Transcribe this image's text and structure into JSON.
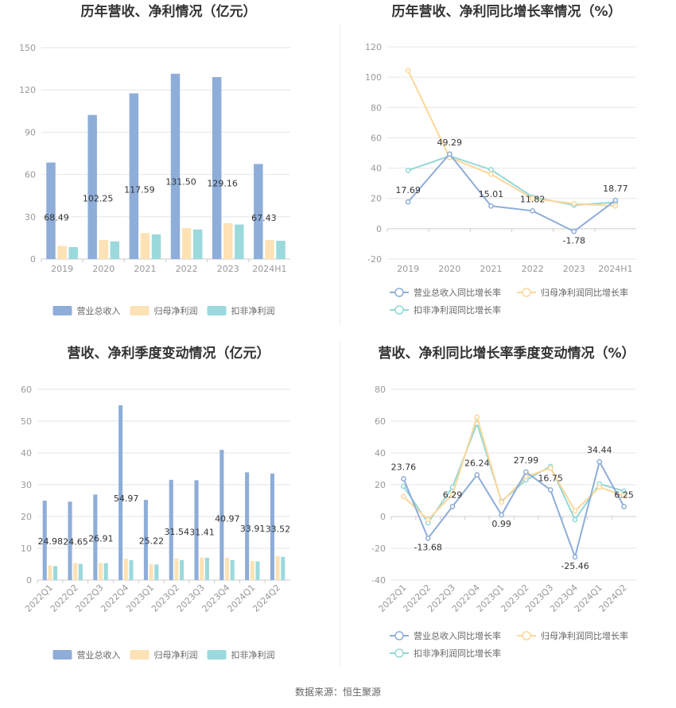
{
  "footer": {
    "source": "数据来源：恒生聚源"
  },
  "colors": {
    "blue": "#8eadd9",
    "yellow": "#fde2b5",
    "teal": "#9bd9dc",
    "line_yellow": "#fdd79a",
    "line_teal": "#93d8d6",
    "line_blue": "#8eadd9"
  },
  "chart_data": [
    {
      "id": "annual-bars",
      "type": "bar",
      "title": "历年营收、净利情况（亿元）",
      "categories": [
        "2019",
        "2020",
        "2021",
        "2022",
        "2023",
        "2024H1"
      ],
      "series": [
        {
          "name": "营业总收入",
          "values": [
            68.49,
            102.25,
            117.59,
            131.5,
            129.16,
            67.43
          ],
          "color": "#8eadd9",
          "labels": [
            "68.49",
            "102.25",
            "117.59",
            "131.50",
            "129.16",
            "67.43"
          ]
        },
        {
          "name": "归母净利润",
          "values": [
            9.3,
            13.5,
            18.5,
            22.0,
            25.5,
            13.5
          ],
          "color": "#fde2b5"
        },
        {
          "name": "扣非净利润",
          "values": [
            8.5,
            12.5,
            17.5,
            21.0,
            24.5,
            13.0
          ],
          "color": "#9bd9dc"
        }
      ],
      "yticks": [
        0,
        30,
        60,
        90,
        120,
        150
      ],
      "ylim": [
        0,
        150
      ]
    },
    {
      "id": "annual-growth",
      "type": "line",
      "title": "历年营收、净利同比增长率情况（%）",
      "categories": [
        "2019",
        "2020",
        "2021",
        "2022",
        "2023",
        "2024H1"
      ],
      "series": [
        {
          "name": "营业总收入同比增长率",
          "values": [
            17.69,
            49.29,
            15.01,
            11.82,
            -1.78,
            18.77
          ],
          "color": "#8eadd9",
          "labels": [
            "17.69",
            "49.29",
            "15.01",
            "11.82",
            "-1.78",
            "18.77"
          ]
        },
        {
          "name": "归母净利润同比增长率",
          "values": [
            104.5,
            47.0,
            36.0,
            20.0,
            16.5,
            15.0
          ],
          "color": "#fdd79a"
        },
        {
          "name": "扣非净利润同比增长率",
          "values": [
            38.5,
            48.0,
            39.0,
            21.0,
            15.5,
            17.5
          ],
          "color": "#93d8d6"
        }
      ],
      "yticks": [
        -20,
        0,
        20,
        40,
        60,
        80,
        100,
        120
      ],
      "ylim": [
        -20,
        120
      ]
    },
    {
      "id": "quarterly-bars",
      "type": "bar",
      "title": "营收、净利季度变动情况（亿元）",
      "categories": [
        "2022Q1",
        "2022Q2",
        "2022Q3",
        "2022Q4",
        "2023Q1",
        "2023Q2",
        "2023Q3",
        "2023Q4",
        "2024Q1",
        "2024Q2"
      ],
      "series": [
        {
          "name": "营业总收入",
          "values": [
            24.98,
            24.65,
            26.91,
            54.97,
            25.22,
            31.54,
            31.41,
            40.97,
            33.91,
            33.52
          ],
          "color": "#8eadd9",
          "labels": [
            "24.98",
            "24.65",
            "26.91",
            "54.97",
            "25.22",
            "31.54",
            "31.41",
            "40.97",
            "33.91",
            "33.52"
          ]
        },
        {
          "name": "归母净利润",
          "values": [
            4.6,
            5.4,
            5.4,
            6.7,
            5.0,
            6.8,
            7.1,
            7.0,
            6.0,
            7.5
          ],
          "color": "#fde2b5"
        },
        {
          "name": "扣非净利润",
          "values": [
            4.4,
            5.1,
            5.3,
            6.3,
            4.9,
            6.3,
            7.0,
            6.3,
            5.9,
            7.3
          ],
          "color": "#9bd9dc"
        }
      ],
      "yticks": [
        0,
        10,
        20,
        30,
        40,
        50,
        60
      ],
      "ylim": [
        0,
        60
      ]
    },
    {
      "id": "quarterly-growth",
      "type": "line",
      "title": "营收、净利同比增长率季度变动情况（%）",
      "categories": [
        "2022Q1",
        "2022Q2",
        "2022Q3",
        "2022Q4",
        "2023Q1",
        "2023Q2",
        "2023Q3",
        "2023Q4",
        "2024Q1",
        "2024Q2"
      ],
      "series": [
        {
          "name": "营业总收入同比增长率",
          "values": [
            23.76,
            -13.68,
            6.29,
            26.24,
            0.99,
            27.99,
            16.75,
            -25.46,
            34.44,
            6.25
          ],
          "color": "#8eadd9",
          "labels": [
            "23.76",
            "-13.68",
            "6.29",
            "26.24",
            "0.99",
            "27.99",
            "16.75",
            "-25.46",
            "34.44",
            "6.25"
          ]
        },
        {
          "name": "归母净利润同比增长率",
          "values": [
            12.5,
            -2.0,
            14.0,
            62.5,
            9.0,
            25.0,
            30.5,
            3.5,
            18.5,
            13.0
          ],
          "color": "#fdd79a"
        },
        {
          "name": "扣非净利润同比增长率",
          "values": [
            19.0,
            -4.0,
            18.5,
            58.5,
            9.5,
            23.0,
            31.5,
            -2.0,
            20.5,
            16.0
          ],
          "color": "#93d8d6"
        }
      ],
      "yticks": [
        -40,
        -20,
        0,
        20,
        40,
        60,
        80
      ],
      "ylim": [
        -40,
        80
      ]
    }
  ]
}
